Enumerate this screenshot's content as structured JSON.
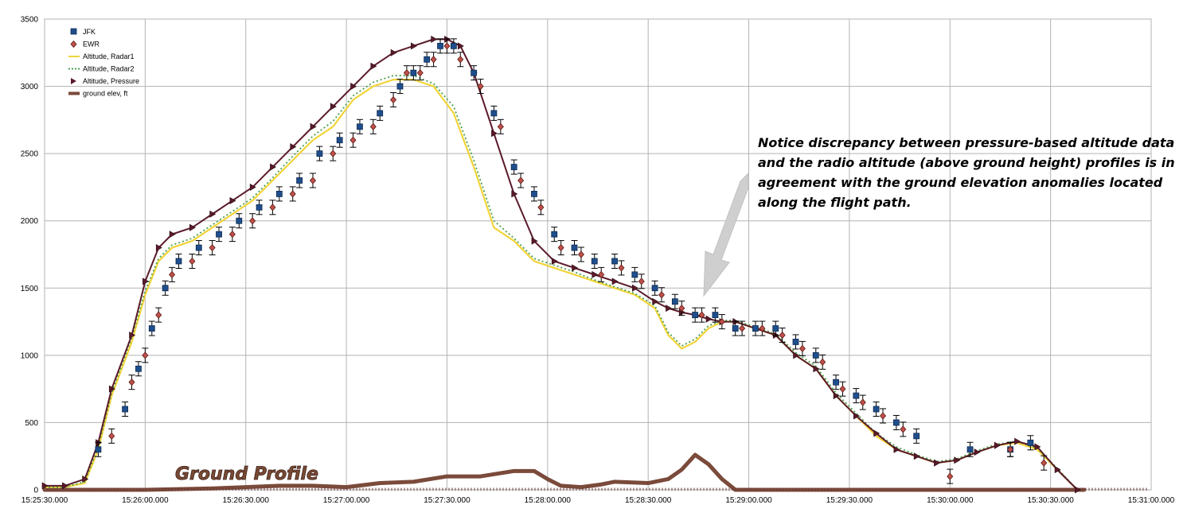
{
  "chart_data": {
    "type": "line",
    "title": "",
    "xlabel": "",
    "ylabel": "",
    "xlim": [
      "15:25:30.000",
      "15:31:00.000"
    ],
    "ylim": [
      0,
      3500
    ],
    "grid": true,
    "legend_position": "top-left",
    "x_ticks": [
      "15:25:30.000",
      "15:26:00.000",
      "15:26:30.000",
      "15:27:00.000",
      "15:27:30.000",
      "15:28:00.000",
      "15:28:30.000",
      "15:29:00.000",
      "15:29:30.000",
      "15:30:00.000",
      "15:30:30.000",
      "15:31:00.000"
    ],
    "y_ticks": [
      "0",
      "500",
      "1000",
      "1500",
      "2000",
      "2500",
      "3000",
      "3500"
    ],
    "series": [
      {
        "name": "JFK",
        "marker": "square",
        "color": "#1f4e8c",
        "error_bars": true,
        "x": [
          "15:25:46",
          "15:25:54",
          "15:25:58",
          "15:26:02",
          "15:26:06",
          "15:26:10",
          "15:26:16",
          "15:26:22",
          "15:26:28",
          "15:26:34",
          "15:26:40",
          "15:26:46",
          "15:26:52",
          "15:26:58",
          "15:27:04",
          "15:27:10",
          "15:27:16",
          "15:27:20",
          "15:27:24",
          "15:27:28",
          "15:27:32",
          "15:27:38",
          "15:27:44",
          "15:27:50",
          "15:27:56",
          "15:28:02",
          "15:28:08",
          "15:28:14",
          "15:28:20",
          "15:28:26",
          "15:28:32",
          "15:28:38",
          "15:28:44",
          "15:28:50",
          "15:28:56",
          "15:29:02",
          "15:29:08",
          "15:29:14",
          "15:29:20",
          "15:29:26",
          "15:29:32",
          "15:29:38",
          "15:29:44",
          "15:29:50",
          "15:30:06",
          "15:30:18",
          "15:30:24"
        ],
        "y": [
          300,
          600,
          900,
          1200,
          1500,
          1700,
          1800,
          1900,
          2000,
          2100,
          2200,
          2300,
          2500,
          2600,
          2700,
          2800,
          3000,
          3100,
          3200,
          3300,
          3300,
          3100,
          2800,
          2400,
          2200,
          1900,
          1800,
          1700,
          1700,
          1600,
          1500,
          1400,
          1300,
          1300,
          1200,
          1200,
          1200,
          1100,
          1000,
          800,
          700,
          600,
          500,
          400,
          300,
          300,
          350
        ]
      },
      {
        "name": "EWR",
        "marker": "diamond",
        "color": "#c0504d",
        "error_bars": true,
        "x": [
          "15:25:50",
          "15:25:56",
          "15:26:00",
          "15:26:04",
          "15:26:08",
          "15:26:14",
          "15:26:20",
          "15:26:26",
          "15:26:32",
          "15:26:38",
          "15:26:44",
          "15:26:50",
          "15:26:56",
          "15:27:02",
          "15:27:08",
          "15:27:14",
          "15:27:18",
          "15:27:22",
          "15:27:26",
          "15:27:30",
          "15:27:34",
          "15:27:40",
          "15:27:46",
          "15:27:52",
          "15:27:58",
          "15:28:04",
          "15:28:10",
          "15:28:16",
          "15:28:22",
          "15:28:28",
          "15:28:34",
          "15:28:40",
          "15:28:46",
          "15:28:52",
          "15:28:58",
          "15:29:04",
          "15:29:10",
          "15:29:16",
          "15:29:22",
          "15:29:28",
          "15:29:34",
          "15:29:40",
          "15:29:46",
          "15:30:00",
          "15:30:18",
          "15:30:28"
        ],
        "y": [
          400,
          800,
          1000,
          1300,
          1600,
          1700,
          1800,
          1900,
          2000,
          2100,
          2200,
          2300,
          2500,
          2600,
          2700,
          2900,
          3100,
          3100,
          3200,
          3300,
          3200,
          3000,
          2700,
          2300,
          2100,
          1800,
          1750,
          1600,
          1650,
          1550,
          1450,
          1350,
          1300,
          1250,
          1200,
          1200,
          1150,
          1050,
          950,
          750,
          650,
          550,
          450,
          100,
          300,
          200
        ]
      },
      {
        "name": "Altitude, Radar1",
        "line_style": "solid",
        "color": "#f2d43a",
        "x": [
          "15:25:30",
          "15:25:36",
          "15:25:42",
          "15:25:46",
          "15:25:50",
          "15:25:56",
          "15:26:00",
          "15:26:04",
          "15:26:08",
          "15:26:14",
          "15:26:20",
          "15:26:26",
          "15:26:32",
          "15:26:38",
          "15:26:44",
          "15:26:50",
          "15:26:56",
          "15:27:02",
          "15:27:08",
          "15:27:14",
          "15:27:20",
          "15:27:26",
          "15:27:32",
          "15:27:38",
          "15:27:44",
          "15:27:50",
          "15:27:56",
          "15:28:02",
          "15:28:08",
          "15:28:14",
          "15:28:20",
          "15:28:26",
          "15:28:32",
          "15:28:36",
          "15:28:40",
          "15:28:44",
          "15:28:48",
          "15:28:52",
          "15:28:56",
          "15:29:02",
          "15:29:08",
          "15:29:14",
          "15:29:20",
          "15:29:26",
          "15:29:32",
          "15:29:38",
          "15:29:44",
          "15:29:50",
          "15:29:56",
          "15:30:02",
          "15:30:08",
          "15:30:14",
          "15:30:20",
          "15:30:26",
          "15:30:32",
          "15:30:38"
        ],
        "y": [
          20,
          20,
          50,
          300,
          700,
          1100,
          1450,
          1700,
          1800,
          1850,
          1950,
          2050,
          2150,
          2300,
          2450,
          2600,
          2700,
          2900,
          3000,
          3050,
          3050,
          3000,
          2800,
          2400,
          1950,
          1850,
          1700,
          1650,
          1600,
          1550,
          1500,
          1450,
          1350,
          1150,
          1050,
          1100,
          1200,
          1250,
          1250,
          1200,
          1150,
          1000,
          900,
          700,
          550,
          400,
          300,
          250,
          200,
          220,
          280,
          330,
          350,
          300,
          150,
          0
        ]
      },
      {
        "name": "Altitude, Radar2",
        "line_style": "dotted",
        "color": "#4aa04a",
        "x": [
          "15:25:30",
          "15:25:36",
          "15:25:42",
          "15:25:46",
          "15:25:50",
          "15:25:56",
          "15:26:00",
          "15:26:04",
          "15:26:08",
          "15:26:14",
          "15:26:20",
          "15:26:26",
          "15:26:32",
          "15:26:38",
          "15:26:44",
          "15:26:50",
          "15:26:56",
          "15:27:02",
          "15:27:08",
          "15:27:14",
          "15:27:20",
          "15:27:26",
          "15:27:32",
          "15:27:38",
          "15:27:44",
          "15:27:50",
          "15:27:56",
          "15:28:02",
          "15:28:08",
          "15:28:14",
          "15:28:20",
          "15:28:26",
          "15:28:32",
          "15:28:36",
          "15:28:40",
          "15:28:44",
          "15:28:48",
          "15:28:52",
          "15:28:56",
          "15:29:02",
          "15:29:08",
          "15:29:14",
          "15:29:20",
          "15:29:26",
          "15:29:32",
          "15:29:38",
          "15:29:44",
          "15:29:50",
          "15:29:56",
          "15:30:02",
          "15:30:08",
          "15:30:14",
          "15:30:20",
          "15:30:26",
          "15:30:32",
          "15:30:38"
        ],
        "y": [
          20,
          20,
          60,
          320,
          720,
          1130,
          1480,
          1720,
          1820,
          1870,
          1970,
          2070,
          2170,
          2320,
          2480,
          2630,
          2740,
          2930,
          3030,
          3080,
          3080,
          3020,
          2850,
          2450,
          2000,
          1870,
          1720,
          1670,
          1620,
          1560,
          1510,
          1460,
          1370,
          1170,
          1070,
          1120,
          1220,
          1260,
          1260,
          1210,
          1160,
          1020,
          920,
          720,
          570,
          420,
          320,
          260,
          210,
          230,
          290,
          340,
          360,
          310,
          160,
          0
        ]
      },
      {
        "name": "Altitude, Pressure",
        "marker": "triangle-right",
        "color": "#5a1a2a",
        "x": [
          "15:25:30",
          "15:25:36",
          "15:25:42",
          "15:25:46",
          "15:25:50",
          "15:25:56",
          "15:26:00",
          "15:26:04",
          "15:26:08",
          "15:26:14",
          "15:26:20",
          "15:26:26",
          "15:26:32",
          "15:26:38",
          "15:26:44",
          "15:26:50",
          "15:26:56",
          "15:27:02",
          "15:27:08",
          "15:27:14",
          "15:27:20",
          "15:27:26",
          "15:27:30",
          "15:27:34",
          "15:27:38",
          "15:27:44",
          "15:27:50",
          "15:27:56",
          "15:28:02",
          "15:28:08",
          "15:28:14",
          "15:28:20",
          "15:28:26",
          "15:28:32",
          "15:28:36",
          "15:28:40",
          "15:28:44",
          "15:28:48",
          "15:28:52",
          "15:28:56",
          "15:29:02",
          "15:29:08",
          "15:29:14",
          "15:29:20",
          "15:29:26",
          "15:29:32",
          "15:29:38",
          "15:29:44",
          "15:29:50",
          "15:29:56",
          "15:30:02",
          "15:30:08",
          "15:30:14",
          "15:30:20",
          "15:30:26",
          "15:30:32",
          "15:30:38"
        ],
        "y": [
          30,
          30,
          80,
          350,
          750,
          1150,
          1550,
          1800,
          1900,
          1950,
          2050,
          2150,
          2250,
          2400,
          2550,
          2700,
          2850,
          3000,
          3150,
          3250,
          3300,
          3350,
          3350,
          3300,
          3100,
          2650,
          2200,
          1850,
          1700,
          1650,
          1600,
          1550,
          1500,
          1400,
          1350,
          1320,
          1300,
          1270,
          1250,
          1250,
          1200,
          1150,
          1000,
          900,
          700,
          550,
          420,
          300,
          250,
          200,
          220,
          280,
          330,
          360,
          320,
          150,
          0
        ]
      },
      {
        "name": "ground elev, ft",
        "line_style": "solid-thick",
        "color": "#7a4a3a",
        "x": [
          "15:25:30",
          "15:25:36",
          "15:25:40",
          "15:26:00",
          "15:26:20",
          "15:26:30",
          "15:26:40",
          "15:26:50",
          "15:27:00",
          "15:27:10",
          "15:27:20",
          "15:27:30",
          "15:27:40",
          "15:27:50",
          "15:27:56",
          "15:28:00",
          "15:28:04",
          "15:28:10",
          "15:28:16",
          "15:28:20",
          "15:28:30",
          "15:28:36",
          "15:28:40",
          "15:28:44",
          "15:28:48",
          "15:28:52",
          "15:28:56",
          "15:29:00",
          "15:29:30",
          "15:30:00",
          "15:30:30",
          "15:30:40"
        ],
        "y": [
          0,
          0,
          0,
          0,
          10,
          20,
          30,
          30,
          20,
          50,
          60,
          100,
          100,
          140,
          140,
          80,
          30,
          20,
          40,
          60,
          50,
          80,
          150,
          260,
          190,
          80,
          0,
          0,
          0,
          0,
          0,
          0
        ]
      }
    ],
    "annotations": [
      {
        "text": "Notice discrepancy between pressure-based altitude data and the radio altitude (above ground height) profiles is in agreement with the ground elevation anomalies located along the flight path.",
        "lines": [
          "Notice discrepancy between pressure-based altitude data",
          "and the radio altitude (above ground height) profiles is in",
          "agreement with the ground elevation anomalies located",
          "along the flight path."
        ]
      },
      {
        "text": "Ground Profile"
      }
    ]
  },
  "colors": {
    "jfk": "#1f4e8c",
    "ewr": "#c0504d",
    "radar1": "#f2d43a",
    "radar2": "#4aa04a",
    "pressure": "#5a1a2a",
    "ground": "#7a4a3a",
    "grid": "#b3b3b3",
    "arrow": "#c8c8c8"
  }
}
